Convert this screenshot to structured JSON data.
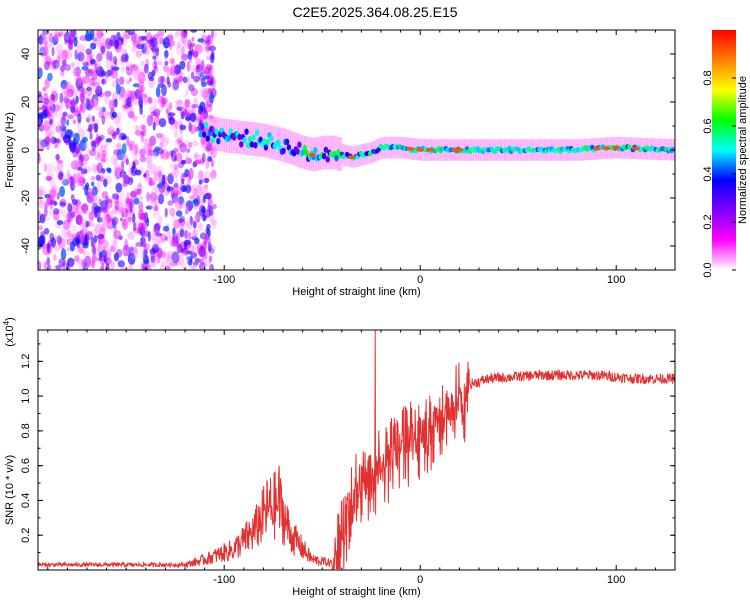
{
  "title": "C2E5.2025.364.08.25.E15",
  "chart_data": [
    {
      "type": "heatmap",
      "name": "spectrogram",
      "xlabel": "Height of straight line (km)",
      "ylabel": "Frequency (Hz)",
      "xlim": [
        -195,
        130
      ],
      "ylim": [
        -50,
        50
      ],
      "xticks": [
        -100,
        0,
        100
      ],
      "xtick_labels": [
        "-100",
        "0",
        "100"
      ],
      "yticks": [
        -40,
        -20,
        0,
        20,
        40
      ],
      "ytick_labels": [
        "-40",
        "-20",
        "0",
        "20",
        "40"
      ],
      "colorbar": {
        "label": "Normalized spectral amplitude",
        "range": [
          0,
          1
        ],
        "ticks": [
          0.0,
          0.2,
          0.4,
          0.6,
          0.8
        ],
        "tick_labels": [
          "0.0",
          "0.2",
          "0.4",
          "0.6",
          "0.8"
        ],
        "colormap": [
          "#ffffff",
          "#ff00ff",
          "#7f00ff",
          "#0000ff",
          "#00ffff",
          "#00ff00",
          "#ffff00",
          "#ff7f00",
          "#ff0000"
        ]
      },
      "noise_region_x": [
        -195,
        -105
      ],
      "signal_trace": [
        {
          "x": -112,
          "y": 8
        },
        {
          "x": -100,
          "y": 6
        },
        {
          "x": -90,
          "y": 5
        },
        {
          "x": -80,
          "y": 4
        },
        {
          "x": -70,
          "y": 2
        },
        {
          "x": -60,
          "y": -1
        },
        {
          "x": -55,
          "y": -2
        },
        {
          "x": -50,
          "y": -1
        },
        {
          "x": -45,
          "y": -1
        },
        {
          "x": -40,
          "y": -2
        },
        {
          "x": -35,
          "y": -3
        },
        {
          "x": -30,
          "y": -2
        },
        {
          "x": -25,
          "y": -1
        },
        {
          "x": -20,
          "y": 1
        },
        {
          "x": -10,
          "y": 1
        },
        {
          "x": 0,
          "y": 0
        },
        {
          "x": 10,
          "y": 0
        },
        {
          "x": 20,
          "y": 0
        },
        {
          "x": 40,
          "y": 0
        },
        {
          "x": 60,
          "y": 0
        },
        {
          "x": 80,
          "y": 0
        },
        {
          "x": 100,
          "y": 1
        },
        {
          "x": 130,
          "y": 0
        }
      ]
    },
    {
      "type": "line",
      "name": "snr",
      "xlabel": "Height of straight line (km)",
      "ylabel": "SNR (10 * v/v)",
      "y_multiplier": "(x10",
      "y_multiplier_exp": "4",
      "y_multiplier_close": ")",
      "xlim": [
        -195,
        130
      ],
      "ylim": [
        0,
        1.38
      ],
      "xticks": [
        -100,
        0,
        100
      ],
      "xtick_labels": [
        "-100",
        "0",
        "100"
      ],
      "yticks": [
        0.2,
        0.4,
        0.6,
        0.8,
        1.0,
        1.2
      ],
      "ytick_labels": [
        "0.2",
        "0.4",
        "0.6",
        "0.8",
        "1.0",
        "1.2"
      ],
      "color": "#e53030",
      "envelope": [
        {
          "x": -195,
          "y": 0.03
        },
        {
          "x": -120,
          "y": 0.03
        },
        {
          "x": -110,
          "y": 0.06
        },
        {
          "x": -95,
          "y": 0.12
        },
        {
          "x": -85,
          "y": 0.22
        },
        {
          "x": -78,
          "y": 0.35
        },
        {
          "x": -72,
          "y": 0.38
        },
        {
          "x": -66,
          "y": 0.2
        },
        {
          "x": -55,
          "y": 0.06
        },
        {
          "x": -45,
          "y": 0.04
        },
        {
          "x": -40,
          "y": 0.28
        },
        {
          "x": -35,
          "y": 0.5
        },
        {
          "x": -30,
          "y": 0.55
        },
        {
          "x": -25,
          "y": 0.6
        },
        {
          "x": -20,
          "y": 0.7
        },
        {
          "x": -15,
          "y": 0.72
        },
        {
          "x": -8,
          "y": 0.8
        },
        {
          "x": 0,
          "y": 0.85
        },
        {
          "x": 10,
          "y": 0.95
        },
        {
          "x": 20,
          "y": 1.05
        },
        {
          "x": 35,
          "y": 1.1
        },
        {
          "x": 60,
          "y": 1.12
        },
        {
          "x": 90,
          "y": 1.12
        },
        {
          "x": 110,
          "y": 1.1
        },
        {
          "x": 130,
          "y": 1.1
        }
      ],
      "spikes": [
        {
          "x": -72,
          "y": 0.6
        },
        {
          "x": -23,
          "y": 1.38
        }
      ]
    }
  ]
}
